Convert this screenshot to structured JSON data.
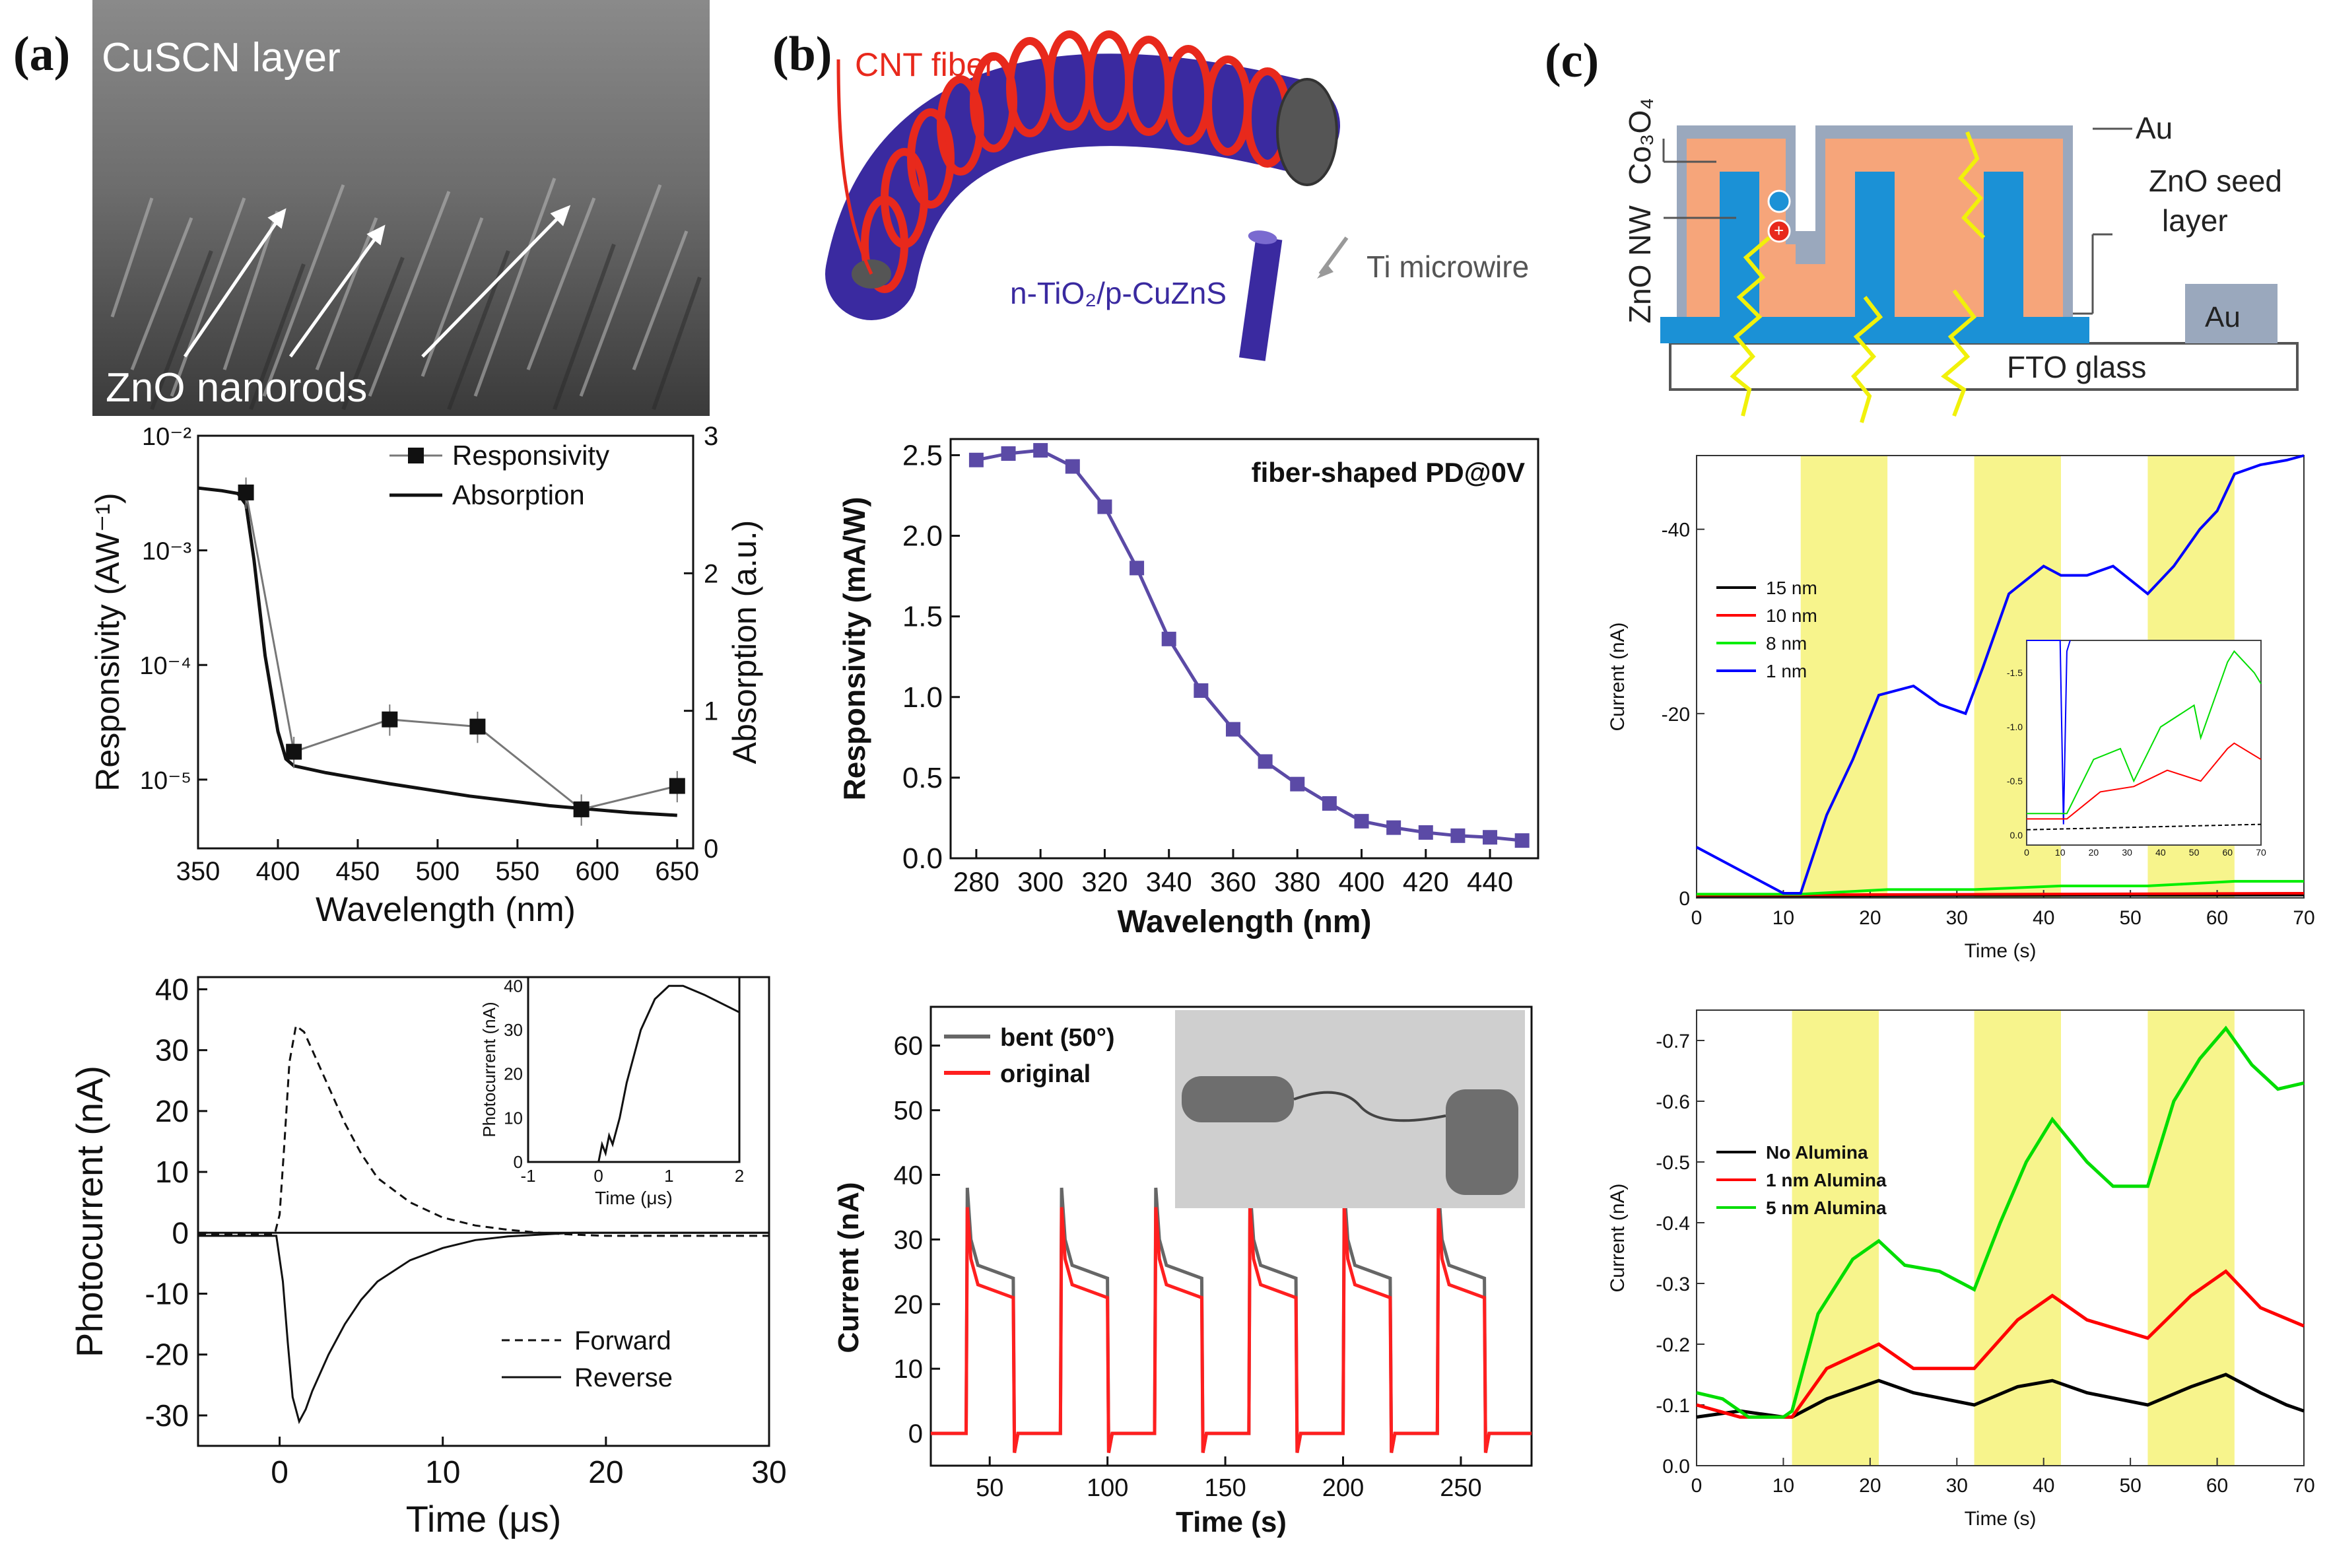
{
  "panel_labels": {
    "a": "(a)",
    "b": "(b)",
    "c": "(c)"
  },
  "schematics": {
    "a_sem": {
      "top_label": "CuSCN layer",
      "bottom_label": "ZnO nanorods"
    },
    "b_fiber": {
      "cnt_label": "CNT fiber",
      "ti_label": "Ti microwire",
      "shell_label": "n-TiO₂/p-CuZnS"
    },
    "c_device": {
      "co3o4_label": "Co₃O₄",
      "au_top_label": "Au",
      "seed_label_1": "ZnO seed",
      "seed_label_2": "layer",
      "znonw_label": "ZnO NW",
      "au_pad_label": "Au",
      "fto_label": "FTO glass"
    }
  },
  "colors": {
    "blue_dark": "#3a2aa0",
    "fiber_red": "#e8291c",
    "yellow_band": "#f7f48c",
    "purple": "#5b4aa6"
  },
  "chart_data": [
    {
      "id": "a_responsivity",
      "type": "line",
      "xlabel": "Wavelength (nm)",
      "ylabel": "Responsivity (AW⁻¹)",
      "y2label": "Absorption (a.u.)",
      "xlim": [
        350,
        660
      ],
      "ylim_log10": [
        -5.6,
        -2
      ],
      "y2lim": [
        0,
        3
      ],
      "xticks": [
        "350",
        "400",
        "450",
        "500",
        "550",
        "600",
        "650"
      ],
      "ytick_labels": [
        "10⁻²",
        "10⁻³",
        "10⁻⁴",
        "10⁻⁵"
      ],
      "y2ticks": [
        "0",
        "1",
        "2",
        "3"
      ],
      "series": [
        {
          "name": "Responsivity",
          "x": [
            380,
            410,
            470,
            525,
            590,
            650
          ],
          "y": [
            0.0032,
            1.75e-05,
            3.35e-05,
            2.9e-05,
            5.5e-06,
            8.8e-06
          ]
        },
        {
          "name": "Absorption",
          "x": [
            350,
            365,
            375,
            380,
            385,
            392,
            400,
            405,
            410,
            430,
            470,
            520,
            570,
            620,
            650
          ],
          "y": [
            2.62,
            2.6,
            2.58,
            2.5,
            2.1,
            1.4,
            0.85,
            0.65,
            0.6,
            0.55,
            0.47,
            0.38,
            0.31,
            0.26,
            0.24
          ]
        }
      ],
      "legend": [
        "Responsivity",
        "Absorption"
      ]
    },
    {
      "id": "a_photocurrent",
      "type": "line",
      "xlabel": "Time (μs)",
      "ylabel": "Photocurrent (nA)",
      "xlim": [
        -5,
        30
      ],
      "ylim": [
        -35,
        42
      ],
      "xticks": [
        "0",
        "10",
        "20",
        "30"
      ],
      "yticks": [
        "-30",
        "-20",
        "-10",
        "0",
        "10",
        "20",
        "30",
        "40"
      ],
      "series": [
        {
          "name": "Forward",
          "x": [
            -5,
            -0.3,
            0,
            0.3,
            0.6,
            1,
            1.5,
            2,
            3,
            4,
            5,
            6,
            8,
            10,
            12,
            14,
            16,
            18,
            20,
            25,
            30
          ],
          "y": [
            -0.2,
            -0.2,
            3,
            15,
            28,
            34,
            33,
            30,
            24,
            18,
            13,
            9,
            5,
            2.5,
            1.2,
            0.5,
            0,
            -0.3,
            -0.5,
            -0.5,
            -0.5
          ]
        },
        {
          "name": "Reverse",
          "x": [
            -5,
            -0.2,
            0.2,
            0.5,
            0.8,
            1.2,
            1.6,
            2,
            3,
            4,
            5,
            6,
            8,
            10,
            12,
            14,
            16,
            18,
            20,
            25,
            30
          ],
          "y": [
            -0.5,
            -0.5,
            -8,
            -18,
            -27,
            -31,
            -29,
            -26,
            -20,
            -15,
            -11,
            -8,
            -4.5,
            -2.5,
            -1.2,
            -0.6,
            -0.3,
            0,
            0,
            0,
            0
          ]
        }
      ],
      "legend": [
        "Forward",
        "Reverse"
      ],
      "inset": {
        "xlabel": "Time (μs)",
        "ylabel": "Photocurrent (nA)",
        "xlim": [
          -1,
          2
        ],
        "ylim": [
          0,
          42
        ],
        "xticks": [
          "-1",
          "0",
          "1",
          "2"
        ],
        "yticks": [
          "0",
          "10",
          "20",
          "30",
          "40"
        ],
        "x": [
          -1,
          0,
          0.05,
          0.1,
          0.15,
          0.2,
          0.3,
          0.4,
          0.5,
          0.6,
          0.8,
          1,
          1.2,
          1.5,
          2
        ],
        "y": [
          0,
          0,
          4,
          2,
          6,
          4,
          10,
          18,
          24,
          30,
          37,
          40,
          40,
          38,
          34
        ]
      }
    },
    {
      "id": "b_responsivity",
      "type": "line",
      "title": "fiber-shaped PD@0V",
      "xlabel": "Wavelength (nm)",
      "ylabel": "Responsivity (mA/W)",
      "xlim": [
        272,
        455
      ],
      "ylim": [
        0,
        2.6
      ],
      "xticks": [
        "280",
        "300",
        "320",
        "340",
        "360",
        "380",
        "400",
        "420",
        "440"
      ],
      "yticks": [
        "0.0",
        "0.5",
        "1.0",
        "1.5",
        "2.0",
        "2.5"
      ],
      "series": [
        {
          "name": "Responsivity",
          "x": [
            280,
            290,
            300,
            310,
            320,
            330,
            340,
            350,
            360,
            370,
            380,
            390,
            400,
            410,
            420,
            430,
            440,
            450
          ],
          "y": [
            2.47,
            2.51,
            2.53,
            2.43,
            2.18,
            1.8,
            1.36,
            1.04,
            0.8,
            0.6,
            0.46,
            0.34,
            0.23,
            0.19,
            0.16,
            0.14,
            0.13,
            0.11
          ]
        }
      ]
    },
    {
      "id": "b_current",
      "type": "line",
      "xlabel": "Time (s)",
      "ylabel": "Current (nA)",
      "xlim": [
        25,
        280
      ],
      "ylim": [
        -5,
        66
      ],
      "xticks": [
        "50",
        "100",
        "150",
        "200",
        "250"
      ],
      "yticks": [
        "0",
        "10",
        "20",
        "30",
        "40",
        "50",
        "60"
      ],
      "on_off_cycles": {
        "on_times": [
          40,
          80,
          120,
          160,
          200,
          240
        ],
        "on_duration": 20
      },
      "series": [
        {
          "name": "bent (50°)",
          "peak": 38,
          "plateau": 26
        },
        {
          "name": "original",
          "peak": 35,
          "plateau": 23
        }
      ],
      "legend": [
        "bent (50°)",
        "original"
      ]
    },
    {
      "id": "c_current_thickness",
      "type": "line",
      "xlabel": "Time (s)",
      "ylabel": "Current (nA)",
      "xlim": [
        0,
        70
      ],
      "ylim": [
        0,
        -48
      ],
      "xticks": [
        "0",
        "10",
        "20",
        "30",
        "40",
        "50",
        "60",
        "70"
      ],
      "yticks": [
        "0",
        "-20",
        "-40"
      ],
      "illumination_bands": [
        [
          12,
          22
        ],
        [
          32,
          42
        ],
        [
          52,
          62
        ]
      ],
      "series": [
        {
          "name": "15 nm",
          "color": "#000000",
          "x": [
            0,
            70
          ],
          "y": [
            -0.2,
            -0.3
          ]
        },
        {
          "name": "10 nm",
          "color": "#ff0000",
          "x": [
            0,
            70
          ],
          "y": [
            -0.3,
            -0.5
          ]
        },
        {
          "name": "8 nm",
          "color": "#00ee00",
          "x": [
            0,
            12,
            22,
            32,
            42,
            52,
            62,
            70
          ],
          "y": [
            -0.4,
            -0.4,
            -0.9,
            -0.9,
            -1.3,
            -1.3,
            -1.8,
            -1.8
          ]
        },
        {
          "name": "1 nm",
          "color": "#0000ff",
          "x": [
            0,
            5,
            10,
            12,
            15,
            18,
            21,
            25,
            28,
            31,
            33,
            36,
            40,
            42,
            45,
            48,
            52,
            55,
            58,
            60,
            62,
            65,
            68,
            70
          ],
          "y": [
            -5.5,
            -3,
            -0.5,
            -0.5,
            -9,
            -15,
            -22,
            -23,
            -21,
            -20,
            -25,
            -33,
            -36,
            -35,
            -35,
            -36,
            -33,
            -36,
            -40,
            -42,
            -46,
            -47,
            -47.5,
            -48
          ]
        }
      ],
      "legend": [
        "15 nm",
        "10 nm",
        "8 nm",
        "1 nm"
      ],
      "inset": {
        "xticks": [
          "0",
          "10",
          "20",
          "30",
          "40",
          "50",
          "60",
          "70"
        ],
        "yticks": [
          "0.0",
          "-0.5",
          "-1.0",
          "-1.5"
        ]
      }
    },
    {
      "id": "c_current_alumina",
      "type": "line",
      "xlabel": "Time (s)",
      "ylabel": "Current (nA)",
      "xlim": [
        0,
        70
      ],
      "ylim": [
        0,
        -0.75
      ],
      "xticks": [
        "0",
        "10",
        "20",
        "30",
        "40",
        "50",
        "60",
        "70"
      ],
      "yticks": [
        "0.0",
        "-0.1",
        "-0.2",
        "-0.3",
        "-0.4",
        "-0.5",
        "-0.6",
        "-0.7"
      ],
      "illumination_bands": [
        [
          11,
          21
        ],
        [
          32,
          42
        ],
        [
          52,
          62
        ]
      ],
      "series": [
        {
          "name": "No Alumina",
          "color": "#000000",
          "x": [
            0,
            5,
            10,
            11,
            15,
            21,
            25,
            32,
            37,
            41,
            45,
            52,
            57,
            61,
            65,
            68,
            70
          ],
          "y": [
            -0.08,
            -0.09,
            -0.08,
            -0.08,
            -0.11,
            -0.14,
            -0.12,
            -0.1,
            -0.13,
            -0.14,
            -0.12,
            -0.1,
            -0.13,
            -0.15,
            -0.12,
            -0.1,
            -0.09
          ]
        },
        {
          "name": "1 nm Alumina",
          "color": "#ff0000",
          "x": [
            0,
            5,
            10,
            11,
            15,
            21,
            25,
            32,
            37,
            41,
            45,
            52,
            57,
            61,
            65,
            70
          ],
          "y": [
            -0.1,
            -0.08,
            -0.08,
            -0.08,
            -0.16,
            -0.2,
            -0.16,
            -0.16,
            -0.24,
            -0.28,
            -0.24,
            -0.21,
            -0.28,
            -0.32,
            -0.26,
            -0.23
          ]
        },
        {
          "name": "5 nm Alumina",
          "color": "#00dd00",
          "x": [
            0,
            3,
            6,
            10,
            11,
            14,
            18,
            21,
            24,
            28,
            32,
            35,
            38,
            41,
            45,
            48,
            52,
            55,
            58,
            61,
            64,
            67,
            70
          ],
          "y": [
            -0.12,
            -0.11,
            -0.08,
            -0.08,
            -0.09,
            -0.25,
            -0.34,
            -0.37,
            -0.33,
            -0.32,
            -0.29,
            -0.4,
            -0.5,
            -0.57,
            -0.5,
            -0.46,
            -0.46,
            -0.6,
            -0.67,
            -0.72,
            -0.66,
            -0.62,
            -0.63
          ]
        }
      ],
      "legend": [
        "No Alumina",
        "1 nm Alumina",
        "5 nm Alumina"
      ]
    }
  ]
}
